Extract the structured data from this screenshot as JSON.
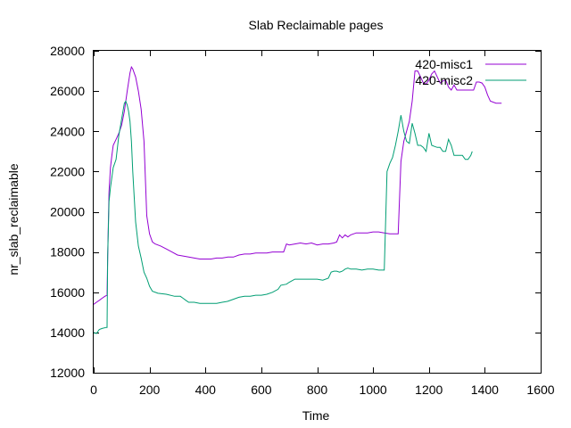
{
  "chart_data": {
    "type": "line",
    "title": "Slab Reclaimable pages",
    "xlabel": "Time",
    "ylabel": "nr_slab_reclaimable",
    "xlim": [
      0,
      1600
    ],
    "ylim": [
      12000,
      28000
    ],
    "xticks": [
      0,
      200,
      400,
      600,
      800,
      1000,
      1200,
      1400,
      1600
    ],
    "yticks": [
      12000,
      14000,
      16000,
      18000,
      20000,
      22000,
      24000,
      26000,
      28000
    ],
    "grid": false,
    "legend_position": "top-right",
    "series": [
      {
        "name": "420-misc1",
        "color": "#9400d3",
        "points": [
          [
            0,
            15400
          ],
          [
            10,
            15500
          ],
          [
            20,
            15600
          ],
          [
            30,
            15700
          ],
          [
            40,
            15800
          ],
          [
            48,
            15850
          ],
          [
            50,
            17800
          ],
          [
            55,
            21000
          ],
          [
            60,
            22200
          ],
          [
            65,
            22800
          ],
          [
            70,
            23300
          ],
          [
            80,
            23600
          ],
          [
            90,
            23900
          ],
          [
            100,
            24300
          ],
          [
            110,
            25000
          ],
          [
            120,
            26000
          ],
          [
            130,
            26900
          ],
          [
            135,
            27200
          ],
          [
            140,
            27100
          ],
          [
            150,
            26700
          ],
          [
            160,
            26000
          ],
          [
            170,
            25100
          ],
          [
            180,
            23500
          ],
          [
            190,
            19800
          ],
          [
            200,
            18900
          ],
          [
            210,
            18500
          ],
          [
            220,
            18400
          ],
          [
            240,
            18300
          ],
          [
            260,
            18150
          ],
          [
            280,
            18000
          ],
          [
            300,
            17850
          ],
          [
            320,
            17800
          ],
          [
            340,
            17750
          ],
          [
            360,
            17700
          ],
          [
            380,
            17650
          ],
          [
            400,
            17650
          ],
          [
            420,
            17650
          ],
          [
            440,
            17700
          ],
          [
            460,
            17700
          ],
          [
            480,
            17750
          ],
          [
            500,
            17750
          ],
          [
            520,
            17850
          ],
          [
            540,
            17900
          ],
          [
            560,
            17900
          ],
          [
            580,
            17950
          ],
          [
            600,
            17950
          ],
          [
            620,
            17950
          ],
          [
            640,
            18000
          ],
          [
            660,
            18000
          ],
          [
            680,
            18000
          ],
          [
            690,
            18400
          ],
          [
            700,
            18350
          ],
          [
            720,
            18400
          ],
          [
            740,
            18450
          ],
          [
            760,
            18400
          ],
          [
            780,
            18450
          ],
          [
            800,
            18350
          ],
          [
            820,
            18400
          ],
          [
            840,
            18400
          ],
          [
            860,
            18450
          ],
          [
            870,
            18500
          ],
          [
            880,
            18850
          ],
          [
            890,
            18700
          ],
          [
            900,
            18850
          ],
          [
            910,
            18750
          ],
          [
            920,
            18850
          ],
          [
            940,
            18950
          ],
          [
            960,
            18950
          ],
          [
            980,
            18950
          ],
          [
            1000,
            19000
          ],
          [
            1020,
            19000
          ],
          [
            1040,
            18950
          ],
          [
            1060,
            18900
          ],
          [
            1080,
            18900
          ],
          [
            1090,
            18900
          ],
          [
            1100,
            22500
          ],
          [
            1110,
            23500
          ],
          [
            1120,
            24000
          ],
          [
            1130,
            24500
          ],
          [
            1140,
            25500
          ],
          [
            1150,
            27000
          ],
          [
            1160,
            27000
          ],
          [
            1170,
            26700
          ],
          [
            1180,
            26400
          ],
          [
            1190,
            26350
          ],
          [
            1200,
            26550
          ],
          [
            1210,
            26850
          ],
          [
            1220,
            27000
          ],
          [
            1230,
            26700
          ],
          [
            1240,
            26400
          ],
          [
            1250,
            26500
          ],
          [
            1260,
            26550
          ],
          [
            1270,
            26200
          ],
          [
            1280,
            26050
          ],
          [
            1290,
            26300
          ],
          [
            1300,
            26050
          ],
          [
            1320,
            26050
          ],
          [
            1340,
            26050
          ],
          [
            1360,
            26050
          ],
          [
            1370,
            26450
          ],
          [
            1380,
            26450
          ],
          [
            1390,
            26400
          ],
          [
            1400,
            26200
          ],
          [
            1410,
            25800
          ],
          [
            1420,
            25500
          ],
          [
            1440,
            25400
          ],
          [
            1460,
            25400
          ]
        ]
      },
      {
        "name": "420-misc2",
        "color": "#009e73",
        "points": [
          [
            0,
            14000
          ],
          [
            10,
            13950
          ],
          [
            20,
            14150
          ],
          [
            30,
            14200
          ],
          [
            45,
            14250
          ],
          [
            48,
            14250
          ],
          [
            50,
            17800
          ],
          [
            55,
            20500
          ],
          [
            60,
            21200
          ],
          [
            70,
            22200
          ],
          [
            80,
            22600
          ],
          [
            90,
            23800
          ],
          [
            100,
            24600
          ],
          [
            110,
            25400
          ],
          [
            115,
            25500
          ],
          [
            120,
            25300
          ],
          [
            125,
            25000
          ],
          [
            130,
            24500
          ],
          [
            135,
            23500
          ],
          [
            140,
            22000
          ],
          [
            150,
            19500
          ],
          [
            160,
            18300
          ],
          [
            170,
            17700
          ],
          [
            180,
            17000
          ],
          [
            190,
            16700
          ],
          [
            200,
            16300
          ],
          [
            210,
            16050
          ],
          [
            230,
            15950
          ],
          [
            260,
            15900
          ],
          [
            290,
            15800
          ],
          [
            310,
            15800
          ],
          [
            320,
            15700
          ],
          [
            330,
            15600
          ],
          [
            340,
            15500
          ],
          [
            360,
            15500
          ],
          [
            380,
            15450
          ],
          [
            400,
            15450
          ],
          [
            420,
            15450
          ],
          [
            440,
            15450
          ],
          [
            460,
            15500
          ],
          [
            480,
            15550
          ],
          [
            500,
            15650
          ],
          [
            520,
            15750
          ],
          [
            540,
            15800
          ],
          [
            560,
            15800
          ],
          [
            580,
            15850
          ],
          [
            600,
            15850
          ],
          [
            620,
            15900
          ],
          [
            640,
            16000
          ],
          [
            660,
            16150
          ],
          [
            670,
            16350
          ],
          [
            690,
            16400
          ],
          [
            700,
            16500
          ],
          [
            720,
            16650
          ],
          [
            740,
            16650
          ],
          [
            760,
            16650
          ],
          [
            780,
            16650
          ],
          [
            800,
            16650
          ],
          [
            820,
            16600
          ],
          [
            840,
            16700
          ],
          [
            850,
            17000
          ],
          [
            860,
            17050
          ],
          [
            870,
            17050
          ],
          [
            880,
            17000
          ],
          [
            890,
            17050
          ],
          [
            900,
            17150
          ],
          [
            910,
            17200
          ],
          [
            920,
            17150
          ],
          [
            940,
            17150
          ],
          [
            960,
            17100
          ],
          [
            980,
            17150
          ],
          [
            1000,
            17150
          ],
          [
            1020,
            17100
          ],
          [
            1040,
            17100
          ],
          [
            1050,
            22000
          ],
          [
            1060,
            22400
          ],
          [
            1070,
            22700
          ],
          [
            1080,
            23300
          ],
          [
            1090,
            24000
          ],
          [
            1100,
            24800
          ],
          [
            1110,
            24000
          ],
          [
            1120,
            23500
          ],
          [
            1130,
            23400
          ],
          [
            1140,
            24400
          ],
          [
            1150,
            23900
          ],
          [
            1160,
            23300
          ],
          [
            1170,
            23300
          ],
          [
            1180,
            23200
          ],
          [
            1190,
            23000
          ],
          [
            1200,
            23900
          ],
          [
            1210,
            23300
          ],
          [
            1220,
            23250
          ],
          [
            1230,
            23200
          ],
          [
            1240,
            23200
          ],
          [
            1250,
            23000
          ],
          [
            1260,
            23000
          ],
          [
            1270,
            23600
          ],
          [
            1280,
            23300
          ],
          [
            1290,
            22800
          ],
          [
            1300,
            22800
          ],
          [
            1310,
            22800
          ],
          [
            1320,
            22800
          ],
          [
            1330,
            22600
          ],
          [
            1340,
            22600
          ],
          [
            1350,
            22800
          ],
          [
            1355,
            23000
          ]
        ]
      }
    ]
  }
}
